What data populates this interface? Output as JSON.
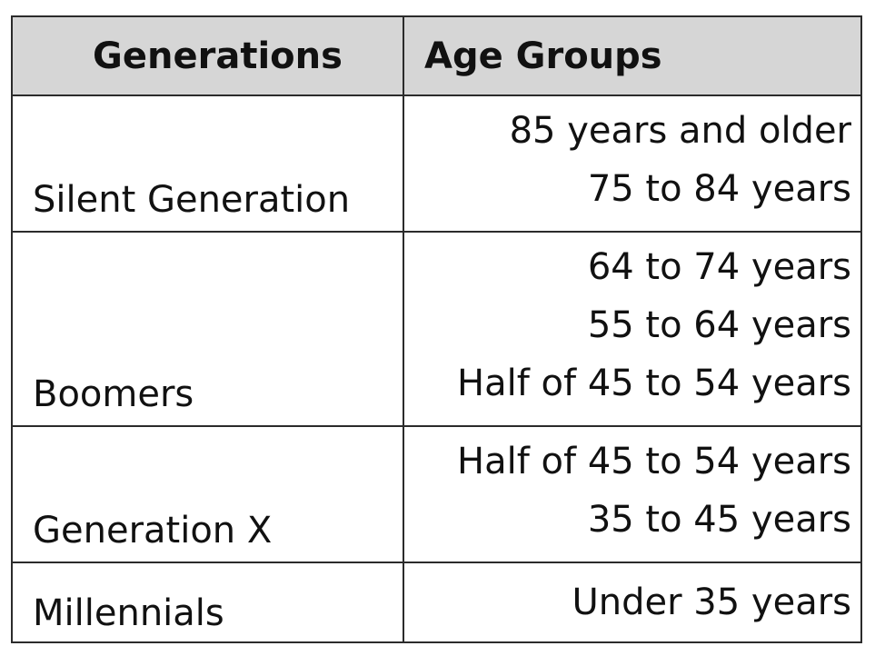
{
  "table": {
    "headers": {
      "generations": "Generations",
      "age_groups": "Age Groups"
    },
    "rows": [
      {
        "generation": "Silent Generation",
        "age_groups": [
          "85 years and older",
          "75 to 84 years"
        ]
      },
      {
        "generation": "Boomers",
        "age_groups": [
          "64 to 74 years",
          "55 to 64 years",
          "Half of 45 to 54 years"
        ]
      },
      {
        "generation": "Generation X",
        "age_groups": [
          "Half of 45 to 54 years",
          "35 to 45 years"
        ]
      },
      {
        "generation": "Millennials",
        "age_groups": [
          "Under 35 years"
        ]
      }
    ]
  }
}
